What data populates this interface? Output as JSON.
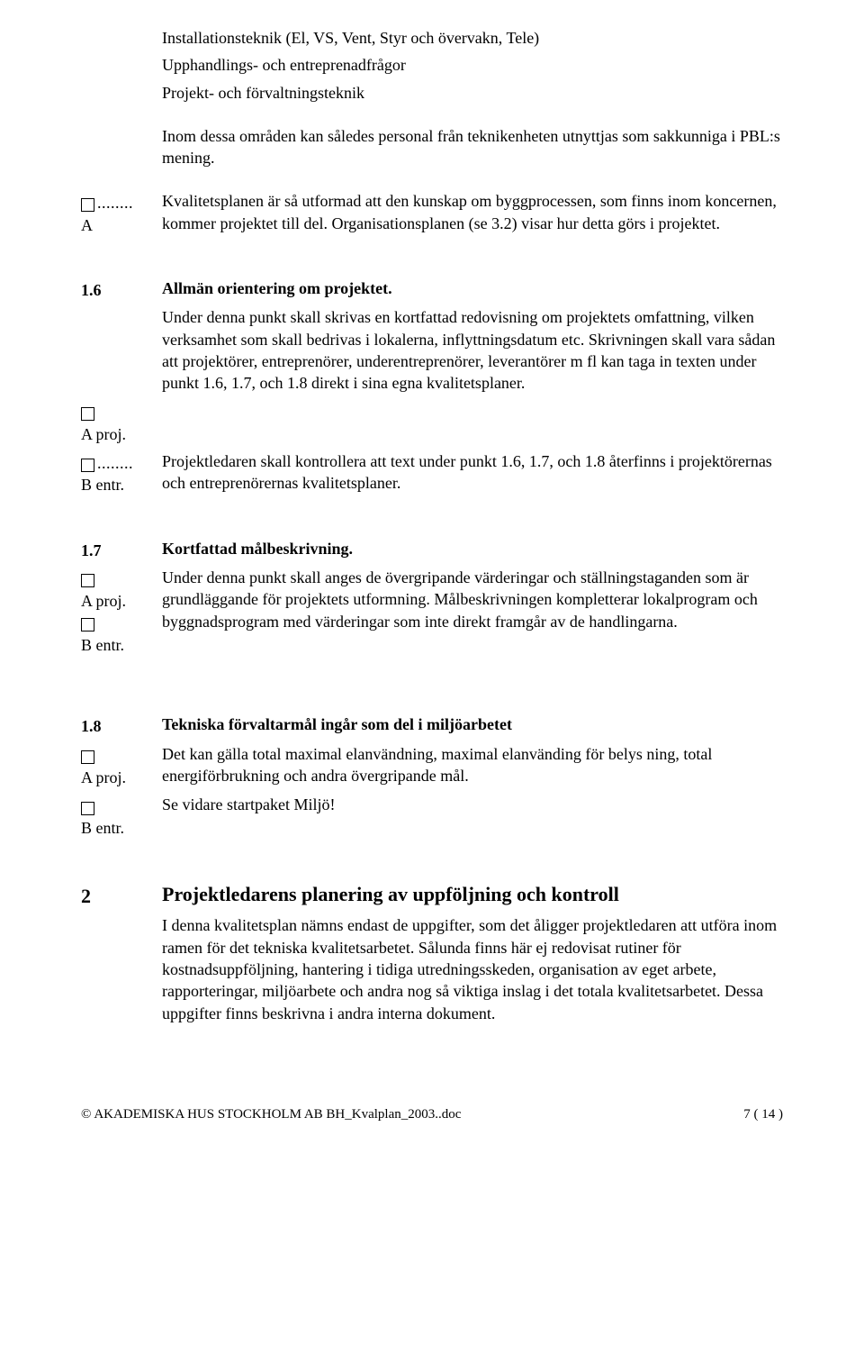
{
  "intro": {
    "line1": "Installationsteknik (El, VS, Vent, Styr och övervakn, Tele)",
    "line2": "Upphandlings- och entreprenadfrågor",
    "line3": "Projekt- och förvaltningsteknik",
    "para1": "Inom dessa områden kan således personal från teknikenheten utnyttjas som sakkunniga i PBL:s mening.",
    "marginA": "A",
    "para2": "Kvalitetsplanen är så utformad att den kunskap om byggprocessen, som finns inom koncernen, kommer projektet till del. Organisationsplanen (se 3.2) visar hur detta görs i projektet."
  },
  "s16": {
    "num": "1.6",
    "title": "Allmän orientering om projektet.",
    "body": "Under denna punkt skall skrivas en kortfattad redovisning om projektets omfattning, vilken verksamhet som skall bedrivas i lokalerna, inflyttningsdatum etc. Skrivningen skall vara sådan att  projektörer, entreprenörer, underentreprenörer, leverantörer m fl kan taga in texten under punkt 1.6, 1.7, och 1.8 direkt i sina egna kvalitetsplaner.",
    "marginA": "A proj.",
    "marginB": "B entr.",
    "note": "Projektledaren skall kontrollera att text under punkt 1.6, 1.7, och 1.8 återfinns i projektörernas och entreprenörernas kvalitetsplaner."
  },
  "s17": {
    "num": "1.7",
    "title": "Kortfattad målbeskrivning.",
    "marginA": "A proj.",
    "marginB": "B entr.",
    "body": "Under denna punkt skall anges de övergripande värderingar och ställningstaganden som är grundläggande för projektets utformning. Målbeskrivningen kompletterar lokalprogram och byggnadsprogram med värderingar som inte direkt framgår av de handlingarna."
  },
  "s18": {
    "num": "1.8",
    "title": "Tekniska förvaltarmål ingår som del i miljöarbetet",
    "marginA": "A proj.",
    "marginB": "B entr.",
    "body": "Det kan gälla total maximal elanvändning, maximal elanvänding för belys ning, total energiförbrukning och andra övergripande mål.",
    "note": "Se vidare startpaket Miljö!"
  },
  "s2": {
    "num": "2",
    "title": "Projektledarens planering av uppföljning och kontroll",
    "body": "I denna kvalitetsplan nämns endast de uppgifter, som det åligger projektledaren att utföra inom ramen för det tekniska kvalitetsarbetet. Sålunda finns här ej redovisat rutiner för kostnadsuppföljning, hantering i tidiga utredningsskeden, organisation av eget arbete, rapporteringar, miljöarbete och andra nog så viktiga inslag i det totala kvalitetsarbetet. Dessa uppgifter finns beskrivna i andra interna dokument."
  },
  "footer": {
    "left": "© AKADEMISKA HUS STOCKHOLM AB    BH_Kvalplan_2003..doc",
    "right": "7 ( 14 )"
  }
}
